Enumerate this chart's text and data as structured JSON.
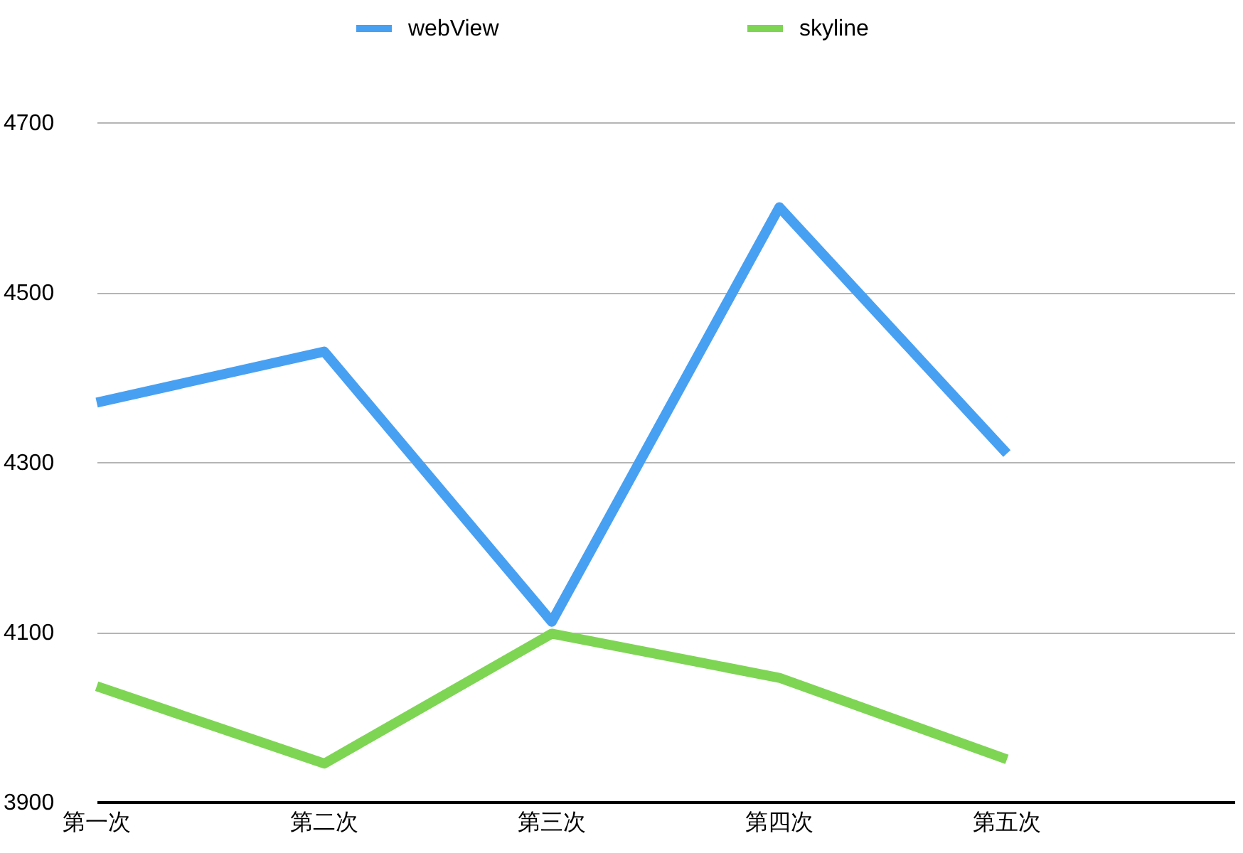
{
  "chart_data": {
    "type": "line",
    "categories": [
      "第一次",
      "第二次",
      "第三次",
      "第四次",
      "第五次"
    ],
    "series": [
      {
        "name": "webView",
        "color": "#48a0f2",
        "values": [
          4370,
          4430,
          4112,
          4600,
          4310
        ]
      },
      {
        "name": "skyline",
        "color": "#7ed554",
        "values": [
          4036,
          3945,
          4098,
          4046,
          3950
        ]
      }
    ],
    "ylim": [
      3900,
      4700
    ],
    "yticks": [
      3900,
      4100,
      4300,
      4500,
      4700
    ],
    "grid": "y",
    "legend": "top"
  }
}
